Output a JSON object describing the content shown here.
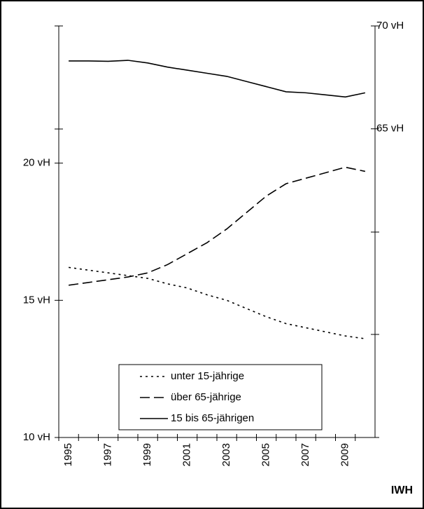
{
  "chart_data": {
    "type": "line",
    "categories": [
      "1995",
      null,
      "1997",
      null,
      "1999",
      null,
      "2001",
      null,
      "2003",
      null,
      "2005",
      null,
      "2007",
      null,
      "2009",
      null
    ],
    "series": [
      {
        "name": "unter 15-jährige",
        "color": "#000000",
        "dash": "dotted",
        "values": [
          16.2,
          16.1,
          16.0,
          15.9,
          15.8,
          15.6,
          15.45,
          15.2,
          15.0,
          14.7,
          14.4,
          14.15,
          14.0,
          13.85,
          13.7,
          13.6
        ]
      },
      {
        "name": "über 65-jährige",
        "color": "#000000",
        "dash": "dashed",
        "values": [
          15.55,
          15.65,
          15.75,
          15.85,
          16.0,
          16.3,
          16.7,
          17.1,
          17.6,
          18.2,
          18.8,
          19.25,
          19.45,
          19.65,
          19.85,
          19.7
        ]
      },
      {
        "name": "15 bis 65-jährigen",
        "color": "#000000",
        "dash": "solid",
        "axis": "y2",
        "values": [
          68.3,
          68.3,
          68.28,
          68.33,
          68.2,
          68.0,
          67.85,
          67.7,
          67.55,
          67.3,
          67.05,
          66.8,
          66.75,
          66.65,
          66.55,
          66.75
        ]
      }
    ],
    "ylim": [
      10,
      25
    ],
    "yticks": [
      {
        "value": 10,
        "label": "10 vH"
      },
      {
        "value": 15,
        "label": "15 vH"
      },
      {
        "value": 20,
        "label": "20 vH"
      }
    ],
    "y2lim": [
      50,
      70
    ],
    "y2ticks": [
      {
        "value": 65,
        "label": "65 vH"
      },
      {
        "value": 70,
        "label": "70 vH"
      }
    ],
    "source": "IWH"
  }
}
